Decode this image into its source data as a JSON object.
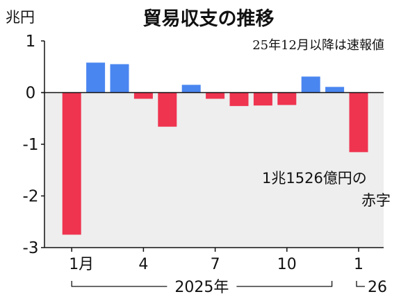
{
  "chart_data": {
    "type": "bar",
    "title": "貿易収支の推移",
    "subtitle": "25年12月以降は速報値",
    "unit_label": "兆円",
    "ylim": [
      -3,
      1
    ],
    "yticks": [
      "1",
      "0",
      "-1",
      "-2",
      "-3"
    ],
    "categories": [
      "2025-01",
      "2025-02",
      "2025-03",
      "2025-04",
      "2025-05",
      "2025-06",
      "2025-07",
      "2025-08",
      "2025-09",
      "2025-10",
      "2025-11",
      "2025-12",
      "2026-01"
    ],
    "values": [
      -2.75,
      0.58,
      0.55,
      -0.12,
      -0.66,
      0.15,
      -0.12,
      -0.26,
      -0.25,
      -0.24,
      0.31,
      0.11,
      -1.1526
    ],
    "xtick_labels": [
      {
        "index": 0,
        "label": "1月"
      },
      {
        "index": 3,
        "label": "4"
      },
      {
        "index": 6,
        "label": "7"
      },
      {
        "index": 9,
        "label": "10"
      },
      {
        "index": 12,
        "label": "1"
      }
    ],
    "year_labels": {
      "y2025": "2025年",
      "y2026": "26"
    },
    "annotation": {
      "line1": "1兆1526億円の",
      "line2": "赤字"
    },
    "colors": {
      "positive": "#4a86f0",
      "negative": "#ef3450",
      "negative_region": "#eeeeee"
    },
    "grid": false
  }
}
